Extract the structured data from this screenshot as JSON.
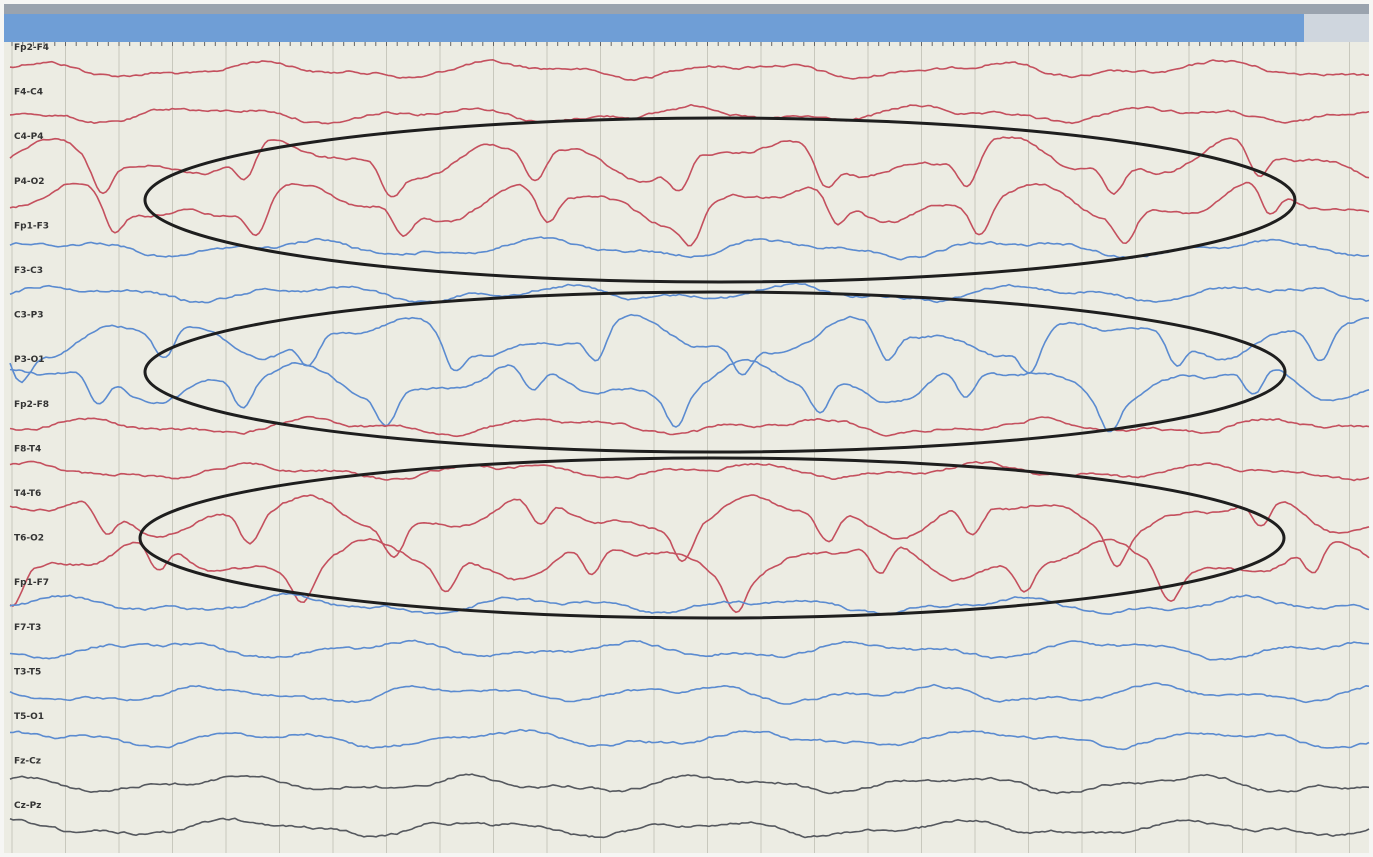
{
  "channels": [
    {
      "label": "Fp2-F4",
      "color": "#c4505e"
    },
    {
      "label": "F4-C4",
      "color": "#c4505e"
    },
    {
      "label": "C4-P4",
      "color": "#c4505e"
    },
    {
      "label": "P4-O2",
      "color": "#c4505e"
    },
    {
      "label": "Fp1-F3",
      "color": "#5b8bd0"
    },
    {
      "label": "F3-C3",
      "color": "#5b8bd0"
    },
    {
      "label": "C3-P3",
      "color": "#5b8bd0"
    },
    {
      "label": "P3-O1",
      "color": "#5b8bd0"
    },
    {
      "label": "Fp2-F8",
      "color": "#c4505e"
    },
    {
      "label": "F8-T4",
      "color": "#c4505e"
    },
    {
      "label": "T4-T6",
      "color": "#c4505e"
    },
    {
      "label": "T6-O2",
      "color": "#c4505e"
    },
    {
      "label": "Fp1-F7",
      "color": "#5b8bd0"
    },
    {
      "label": "F7-T3",
      "color": "#5b8bd0"
    },
    {
      "label": "T3-T5",
      "color": "#5b8bd0"
    },
    {
      "label": "T5-O1",
      "color": "#5b8bd0"
    },
    {
      "label": "Fz-Cz",
      "color": "#55585e"
    },
    {
      "label": "Cz-Pz",
      "color": "#55585e"
    }
  ]
}
